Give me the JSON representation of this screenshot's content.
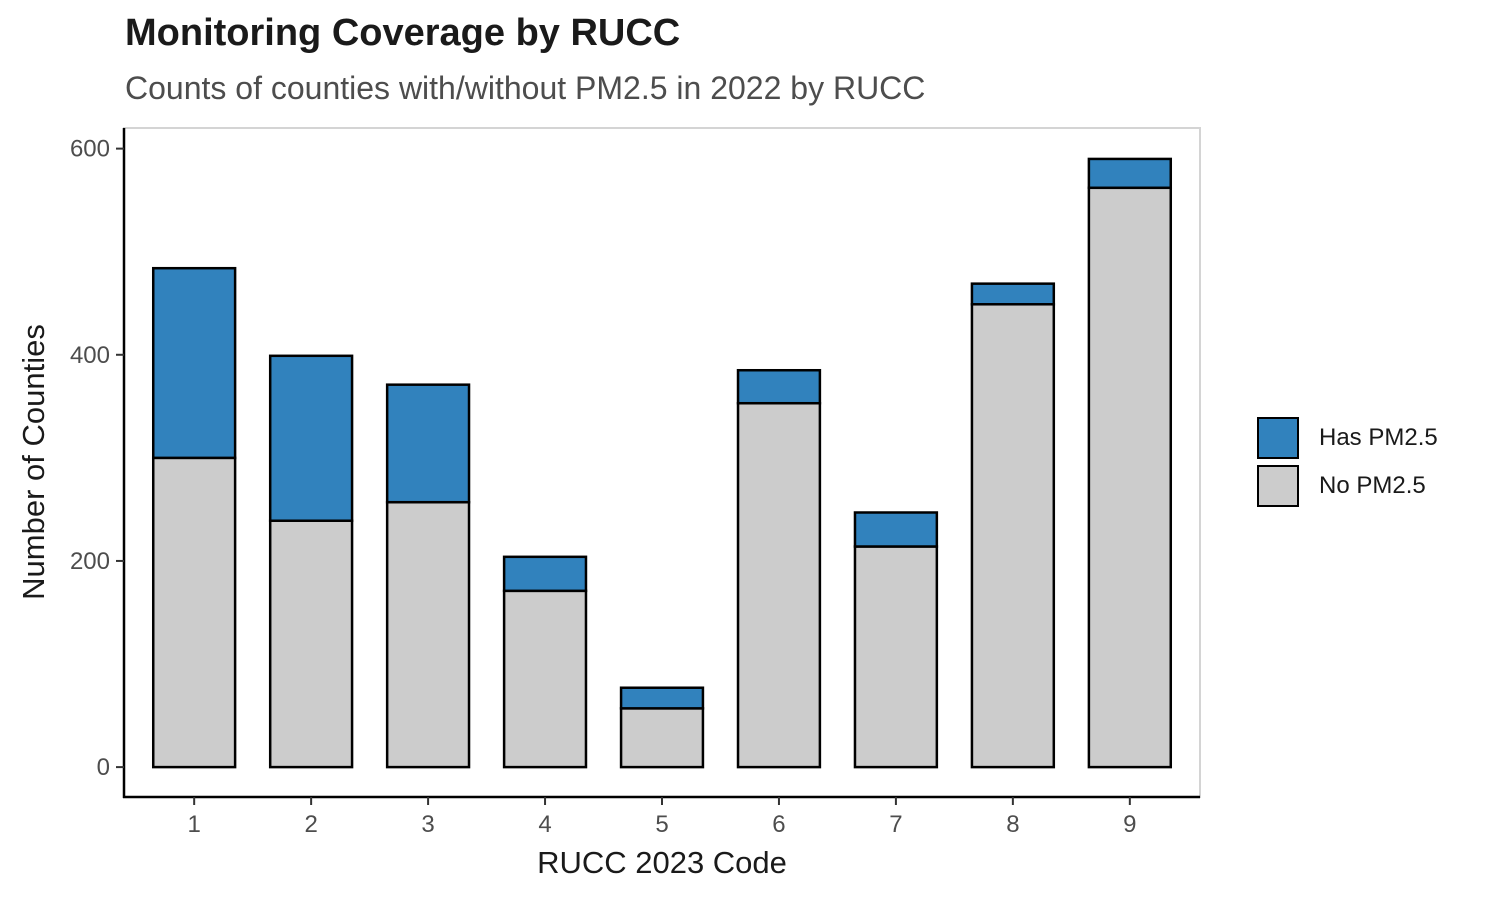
{
  "chart_data": {
    "type": "bar",
    "stacked": true,
    "title": "Monitoring Coverage by RUCC",
    "subtitle": "Counts of counties with/without PM2.5 in 2022 by RUCC",
    "xlabel": "RUCC 2023 Code",
    "ylabel": "Number of Counties",
    "categories": [
      "1",
      "2",
      "3",
      "4",
      "5",
      "6",
      "7",
      "8",
      "9"
    ],
    "series": [
      {
        "name": "No PM2.5",
        "color": "#cccccc",
        "values": [
          300,
          239,
          257,
          171,
          57,
          353,
          214,
          449,
          562
        ]
      },
      {
        "name": "Has PM2.5",
        "color": "#3182bd",
        "values": [
          184,
          160,
          114,
          33,
          20,
          32,
          33,
          20,
          28
        ]
      }
    ],
    "ylim": [
      -29,
      620
    ],
    "yticks": [
      0,
      200,
      400,
      600
    ],
    "legend_position": "right",
    "legend_order": [
      "Has PM2.5",
      "No PM2.5"
    ],
    "grid": false
  }
}
